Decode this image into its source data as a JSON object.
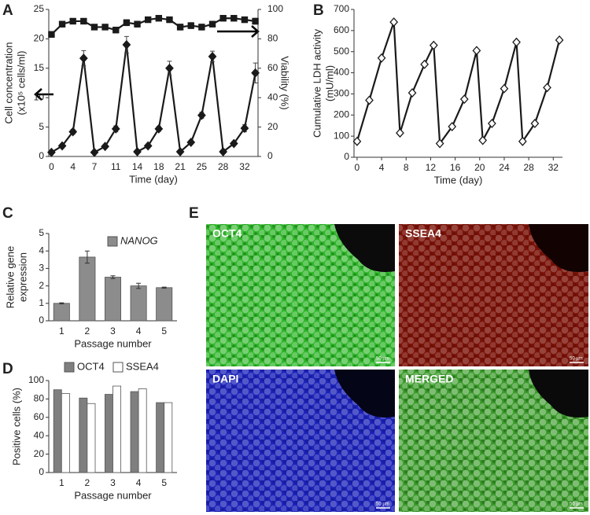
{
  "chart_data": [
    {
      "panel": "A",
      "type": "line",
      "xlabel": "Time (day)",
      "ylabel": [
        "Cell concentration",
        "(x10⁵ cells/ml)"
      ],
      "y2label": "Viability (%)",
      "categories": [
        "0",
        null,
        "4",
        null,
        "7",
        null,
        "11",
        null,
        "14",
        null,
        "18",
        null,
        "21",
        null,
        "25",
        null,
        "28",
        null,
        "32",
        null
      ],
      "ylim": [
        0,
        25
      ],
      "yticks": [
        0,
        5,
        10,
        15,
        20,
        25
      ],
      "y2lim": [
        0,
        100
      ],
      "y2ticks": [
        0,
        20,
        40,
        60,
        80,
        100
      ],
      "series": [
        {
          "color": "#1a1a1a",
          "marker": "diamond",
          "values": [
            0.7,
            1.8,
            4.2,
            16.7,
            0.7,
            1.7,
            4.7,
            19,
            0.8,
            1.8,
            4.7,
            15,
            0.8,
            2.4,
            7,
            17,
            0.8,
            2.2,
            4.8,
            14.2
          ],
          "errors": [
            0.2,
            0.3,
            0.4,
            1.3,
            0.2,
            0.3,
            0.5,
            1.4,
            0.2,
            0.3,
            0.4,
            1.2,
            0.2,
            0.3,
            0.5,
            0.9,
            0.2,
            0.3,
            0.6,
            1.7
          ]
        },
        {
          "color": "#1a1a1a",
          "marker": "square",
          "axis": "y2",
          "values": [
            83,
            90,
            92,
            92,
            88,
            88,
            86,
            91,
            90,
            93,
            94,
            93,
            88,
            89,
            88,
            90,
            94,
            94,
            93,
            92
          ],
          "errors": [
            2,
            2,
            1,
            1,
            1,
            1,
            2,
            2,
            2,
            1,
            1,
            1,
            2,
            2,
            2,
            1,
            1,
            1,
            1,
            2
          ]
        }
      ]
    },
    {
      "panel": "B",
      "type": "line",
      "xlabel": "Time (day)",
      "ylabel": [
        "Cumulative LDH activity",
        "(mU/ml)"
      ],
      "x": [
        0,
        2,
        4,
        6,
        7,
        9,
        11,
        12.5,
        13.5,
        15.5,
        17.5,
        19.5,
        20.5,
        22,
        24,
        26,
        27,
        29,
        31,
        33
      ],
      "xlim": [
        -0.5,
        33.5
      ],
      "xticks": [
        0,
        4,
        8,
        12,
        16,
        20,
        24,
        28,
        32
      ],
      "ylim": [
        0,
        700
      ],
      "yticks": [
        0,
        100,
        200,
        300,
        400,
        500,
        600,
        700
      ],
      "series": [
        {
          "color": "#1a1a1a",
          "marker": "open-diamond",
          "values": [
            75,
            270,
            470,
            640,
            115,
            305,
            440,
            530,
            65,
            145,
            275,
            505,
            80,
            160,
            325,
            545,
            75,
            160,
            330,
            555
          ]
        }
      ]
    },
    {
      "panel": "C",
      "type": "bar",
      "xlabel": "Passage number",
      "ylabel": [
        "Relative gene",
        "expression"
      ],
      "categories": [
        "1",
        "2",
        "3",
        "4",
        "5"
      ],
      "ylim": [
        0,
        5
      ],
      "yticks": [
        0,
        1,
        2,
        3,
        4,
        5
      ],
      "legend": "upper right",
      "series": [
        {
          "name": "NANOG",
          "color": "#8c8c8c",
          "values": [
            1.0,
            3.65,
            2.5,
            2.0,
            1.9
          ],
          "errors": [
            0.03,
            0.35,
            0.08,
            0.15,
            0.03
          ]
        }
      ]
    },
    {
      "panel": "D",
      "type": "bar",
      "xlabel": "Passage number",
      "ylabel": [
        "Positive cells (%)"
      ],
      "categories": [
        "1",
        "2",
        "3",
        "4",
        "5"
      ],
      "ylim": [
        0,
        100
      ],
      "yticks": [
        0,
        20,
        40,
        60,
        80,
        100
      ],
      "legend": "top",
      "series": [
        {
          "name": "OCT4",
          "color": "#7f7f7f",
          "values": [
            90,
            81,
            85,
            88,
            76
          ]
        },
        {
          "name": "SSEA4",
          "color": "#ffffff",
          "values": [
            86,
            75,
            94,
            91,
            76
          ]
        }
      ]
    }
  ],
  "panel_E": {
    "panel": "E",
    "images": [
      {
        "label": "OCT4",
        "scale_bar": "50 µm"
      },
      {
        "label": "SSEA4",
        "scale_bar": "50 µm"
      },
      {
        "label": "DAPI",
        "scale_bar": "50 µm"
      },
      {
        "label": "MERGED",
        "scale_bar": "50 µm"
      }
    ]
  }
}
